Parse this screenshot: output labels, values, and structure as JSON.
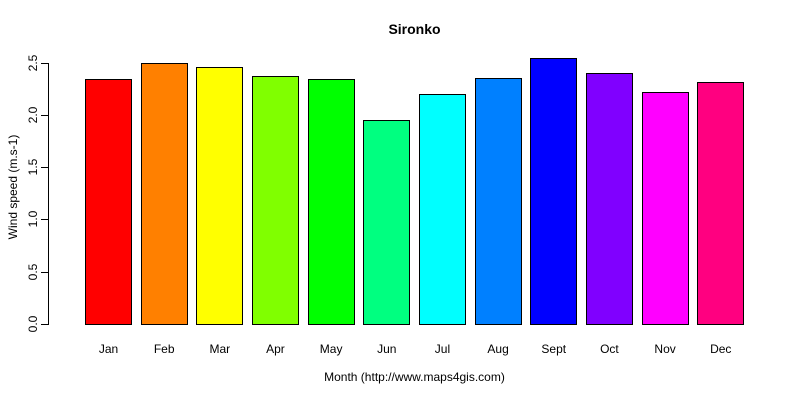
{
  "chart_data": {
    "type": "bar",
    "title": "Sironko",
    "xlabel": "Month (http://www.maps4gis.com)",
    "ylabel": "Wind speed (m.s-1)",
    "categories": [
      "Jan",
      "Feb",
      "Mar",
      "Apr",
      "May",
      "Jun",
      "Jul",
      "Aug",
      "Sept",
      "Oct",
      "Nov",
      "Dec"
    ],
    "values": [
      2.34,
      2.5,
      2.46,
      2.37,
      2.34,
      1.95,
      2.2,
      2.35,
      2.54,
      2.4,
      2.22,
      2.31
    ],
    "bar_colors": [
      "#FF0000",
      "#FF8000",
      "#FFFF00",
      "#80FF00",
      "#00FF00",
      "#00FF80",
      "#00FFFF",
      "#0080FF",
      "#0000FF",
      "#8000FF",
      "#FF00FF",
      "#FF0080"
    ],
    "bar_border_color": "#000000",
    "ytick_labels": [
      "0.0",
      "0.5",
      "1.0",
      "1.5",
      "2.0",
      "2.5"
    ],
    "ylim": [
      0,
      2.5
    ],
    "grid": false,
    "legend": "none",
    "background": "#FFFFFF",
    "axis_color": "#000000"
  }
}
